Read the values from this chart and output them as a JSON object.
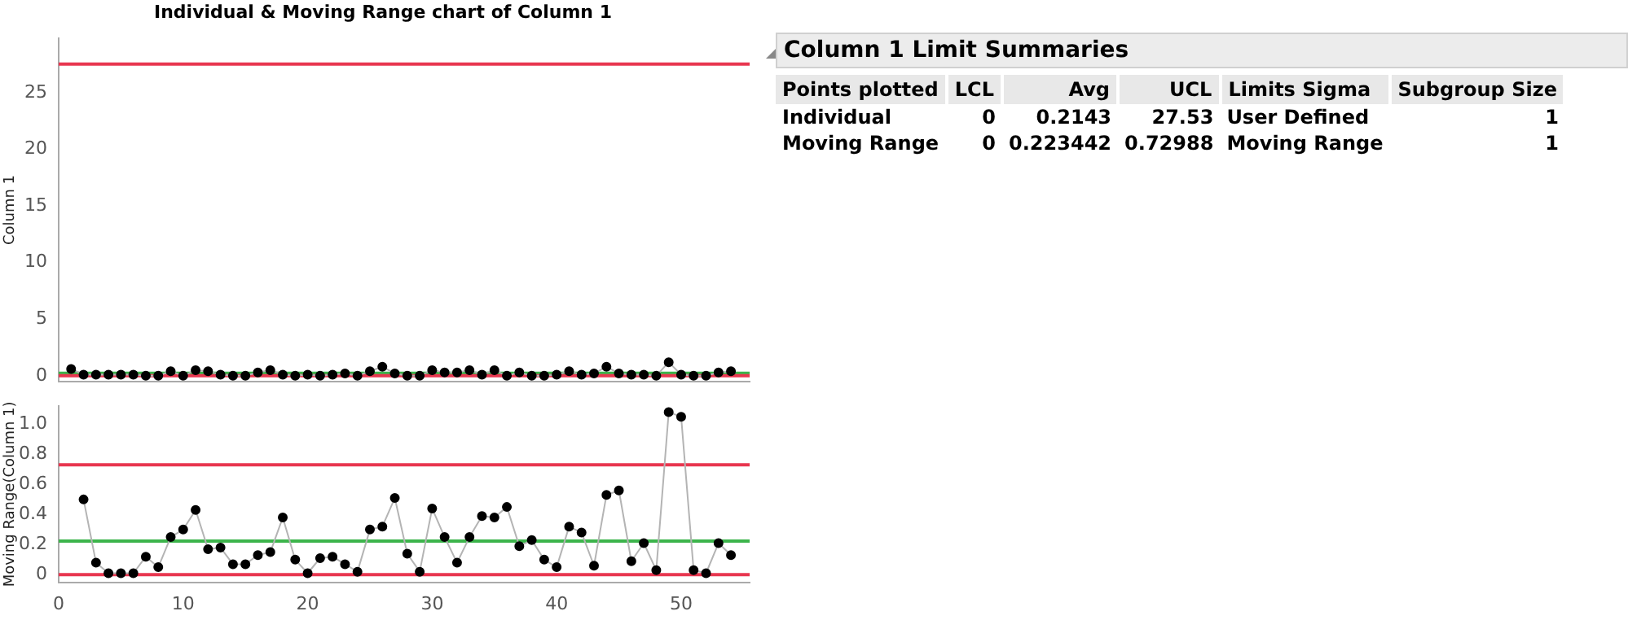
{
  "chart_data": [
    {
      "type": "line",
      "title": "Individual & Moving Range chart of Column 1",
      "ylabel": "Column 1",
      "x": [
        1,
        2,
        3,
        4,
        5,
        6,
        7,
        8,
        9,
        10,
        11,
        12,
        13,
        14,
        15,
        16,
        17,
        18,
        19,
        20,
        21,
        22,
        23,
        24,
        25,
        26,
        27,
        28,
        29,
        30,
        31,
        32,
        33,
        34,
        35,
        36,
        37,
        38,
        39,
        40,
        41,
        42,
        43,
        44,
        45,
        46,
        47,
        48,
        49,
        50,
        51,
        52,
        53,
        54
      ],
      "series": [
        {
          "color": "#000000",
          "values": [
            0.6,
            0.1,
            0.1,
            0.1,
            0.1,
            0.1,
            0.0,
            0.0,
            0.4,
            0.0,
            0.5,
            0.4,
            0.1,
            0.0,
            0.0,
            0.3,
            0.5,
            0.1,
            0.0,
            0.1,
            0.0,
            0.1,
            0.2,
            0.0,
            0.4,
            0.8,
            0.2,
            0.0,
            0.0,
            0.5,
            0.3,
            0.3,
            0.5,
            0.1,
            0.5,
            0.0,
            0.3,
            0.0,
            0.0,
            0.1,
            0.4,
            0.1,
            0.2,
            0.8,
            0.2,
            0.1,
            0.1,
            0.0,
            1.2,
            0.1,
            0.0,
            0.0,
            0.3,
            0.4
          ]
        }
      ],
      "xlim": [
        0,
        55.5
      ],
      "ylim": [
        -0.5,
        29.8
      ],
      "yticks": [
        0,
        5,
        10,
        15,
        20,
        25
      ],
      "tick_labels": "y",
      "marker": "circle",
      "grid": false,
      "legend": false,
      "ref_lines": [
        {
          "axis": "y",
          "value": 27.53,
          "color": "#e8364f"
        },
        {
          "axis": "y",
          "value": 0.2143,
          "color": "#3cb44b"
        },
        {
          "axis": "y",
          "value": 0,
          "color": "#e8364f"
        }
      ]
    },
    {
      "type": "line",
      "ylabel": "Moving Range(Column 1)",
      "x": [
        2,
        3,
        4,
        5,
        6,
        7,
        8,
        9,
        10,
        11,
        12,
        13,
        14,
        15,
        16,
        17,
        18,
        19,
        20,
        21,
        22,
        23,
        24,
        25,
        26,
        27,
        28,
        29,
        30,
        31,
        32,
        33,
        34,
        35,
        36,
        37,
        38,
        39,
        40,
        41,
        42,
        43,
        44,
        45,
        46,
        47,
        48,
        49,
        50,
        51,
        52,
        53,
        54
      ],
      "series": [
        {
          "color": "#000000",
          "values": [
            0.5,
            0.08,
            0.01,
            0.01,
            0.01,
            0.12,
            0.05,
            0.25,
            0.3,
            0.43,
            0.17,
            0.18,
            0.07,
            0.07,
            0.13,
            0.15,
            0.38,
            0.1,
            0.01,
            0.11,
            0.12,
            0.07,
            0.02,
            0.3,
            0.32,
            0.51,
            0.14,
            0.02,
            0.44,
            0.25,
            0.08,
            0.25,
            0.39,
            0.38,
            0.45,
            0.19,
            0.23,
            0.1,
            0.05,
            0.32,
            0.28,
            0.06,
            0.53,
            0.56,
            0.09,
            0.21,
            0.03,
            1.08,
            1.05,
            0.03,
            0.01,
            0.21,
            0.13
          ]
        }
      ],
      "xlim": [
        0,
        55.5
      ],
      "xticks": [
        0,
        10,
        20,
        30,
        40,
        50
      ],
      "ylim": [
        -0.05,
        1.12
      ],
      "yticks": [
        0,
        {
          "value": 0.2,
          "label": "0.2"
        },
        {
          "value": 0.4,
          "label": "0.4"
        },
        {
          "value": 0.6,
          "label": "0.6"
        },
        {
          "value": 0.8,
          "label": "0.8"
        },
        {
          "value": 1,
          "label": "1.0"
        }
      ],
      "marker": "circle",
      "grid": false,
      "legend": false,
      "ref_lines": [
        {
          "axis": "y",
          "value": 0.72988,
          "color": "#e8364f"
        },
        {
          "axis": "y",
          "value": 0.223442,
          "color": "#3cb44b"
        },
        {
          "axis": "y",
          "value": 0,
          "color": "#e8364f"
        }
      ]
    },
    {
      "type": "other",
      "title": "Column 1 Limit Summaries",
      "categories": [
        "Points plotted",
        "LCL",
        "Avg",
        "UCL",
        "Limits Sigma",
        "Subgroup Size"
      ],
      "annotations": [
        "Individual",
        "0",
        "0.2143",
        "27.53",
        "User Defined",
        "1",
        "Moving Range",
        "0",
        "0.223442",
        "0.72988",
        "Moving Range",
        "1"
      ]
    }
  ]
}
